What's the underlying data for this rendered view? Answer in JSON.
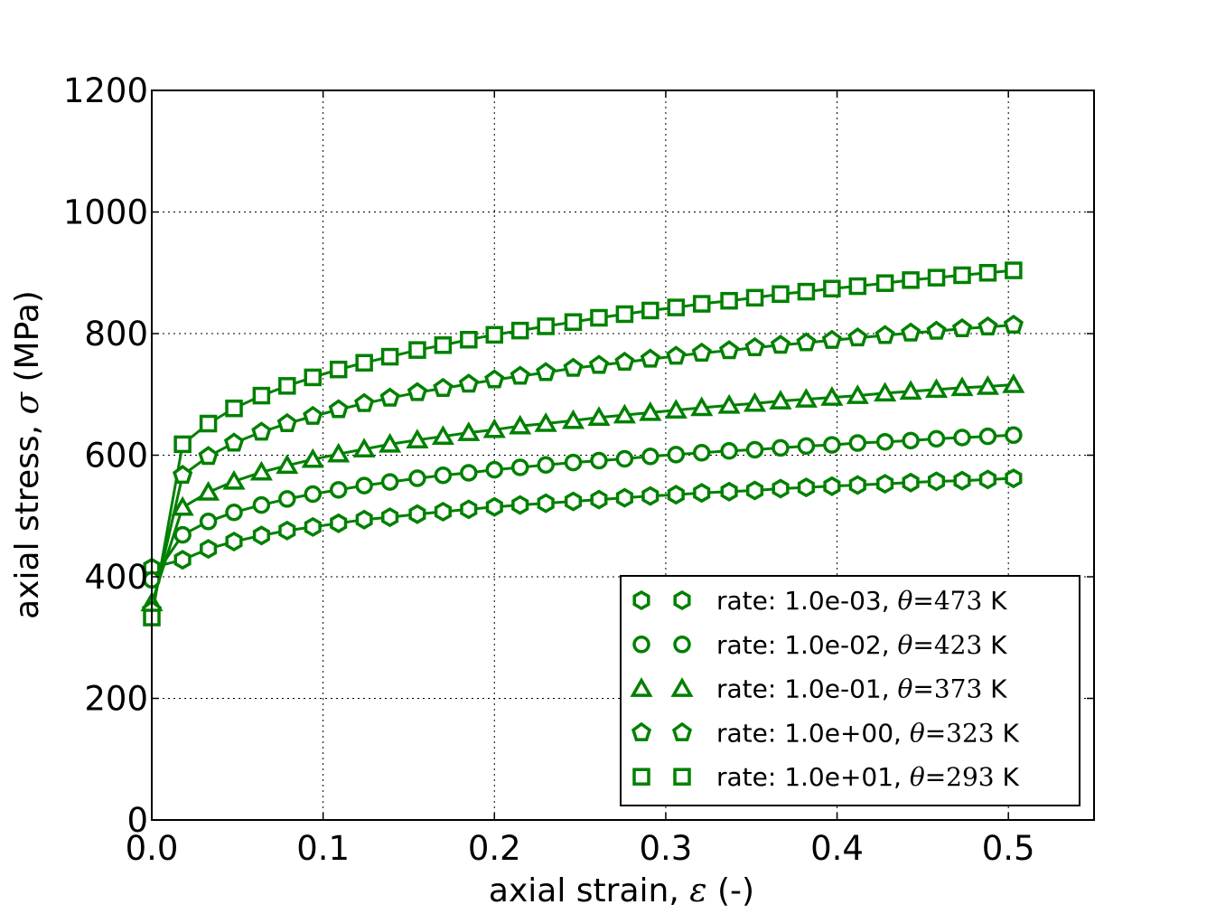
{
  "chart_data": {
    "type": "line",
    "title": "",
    "xlabel": {
      "text": "axial strain, ",
      "symbol": "ε",
      "unit": " (-)"
    },
    "ylabel": {
      "text": "axial stress, ",
      "symbol": "σ",
      "unit": " (MPa)"
    },
    "xlim": [
      0,
      0.55
    ],
    "ylim": [
      0,
      1200
    ],
    "xticks": [
      "0.0",
      "0.1",
      "0.2",
      "0.3",
      "0.4",
      "0.5"
    ],
    "yticks": [
      "0",
      "200",
      "400",
      "600",
      "800",
      "1000",
      "1200"
    ],
    "grid": true,
    "legend_position": "lower-right",
    "color": "#008000",
    "x": [
      0,
      0.018,
      0.033,
      0.048,
      0.064,
      0.079,
      0.094,
      0.109,
      0.124,
      0.139,
      0.155,
      0.17,
      0.185,
      0.2,
      0.215,
      0.23,
      0.246,
      0.261,
      0.276,
      0.291,
      0.306,
      0.321,
      0.337,
      0.352,
      0.367,
      0.382,
      0.397,
      0.412,
      0.428,
      0.443,
      0.458,
      0.473,
      0.488,
      0.503
    ],
    "series": [
      {
        "name": "rate: 1.0e-03, θ=473 K",
        "marker": "hexagon",
        "values": [
          415,
          428,
          446,
          458,
          468,
          476,
          482,
          488,
          494,
          498,
          503,
          507,
          511,
          515,
          518,
          521,
          524,
          527,
          530,
          533,
          535,
          538,
          540,
          542,
          545,
          547,
          549,
          551,
          553,
          555,
          557,
          558,
          560,
          562
        ]
      },
      {
        "name": "rate: 1.0e-02, θ=423 K",
        "marker": "circle",
        "values": [
          395,
          469,
          491,
          506,
          518,
          528,
          536,
          543,
          550,
          556,
          562,
          567,
          571,
          576,
          580,
          584,
          588,
          591,
          594,
          598,
          601,
          604,
          607,
          609,
          612,
          615,
          617,
          620,
          622,
          624,
          627,
          629,
          631,
          633
        ]
      },
      {
        "name": "rate: 1.0e-01, θ=373 K",
        "marker": "triangle",
        "values": [
          357,
          514,
          539,
          557,
          572,
          583,
          593,
          602,
          610,
          618,
          625,
          631,
          637,
          642,
          648,
          652,
          657,
          662,
          666,
          670,
          674,
          678,
          682,
          685,
          689,
          692,
          695,
          698,
          702,
          705,
          708,
          711,
          713,
          716
        ]
      },
      {
        "name": "rate: 1.0e+00, θ=323 K",
        "marker": "pentagon",
        "values": [
          345,
          567,
          598,
          620,
          638,
          652,
          664,
          675,
          685,
          694,
          703,
          710,
          717,
          724,
          730,
          736,
          743,
          748,
          753,
          758,
          763,
          768,
          772,
          777,
          781,
          785,
          789,
          793,
          797,
          801,
          804,
          808,
          811,
          814
        ]
      },
      {
        "name": "rate: 1.0e+01, θ=293 K",
        "marker": "square",
        "values": [
          333,
          618,
          652,
          677,
          698,
          714,
          728,
          741,
          752,
          762,
          773,
          781,
          790,
          798,
          805,
          812,
          819,
          826,
          832,
          838,
          843,
          849,
          854,
          859,
          865,
          869,
          874,
          878,
          883,
          888,
          892,
          896,
          900,
          904
        ]
      }
    ]
  }
}
